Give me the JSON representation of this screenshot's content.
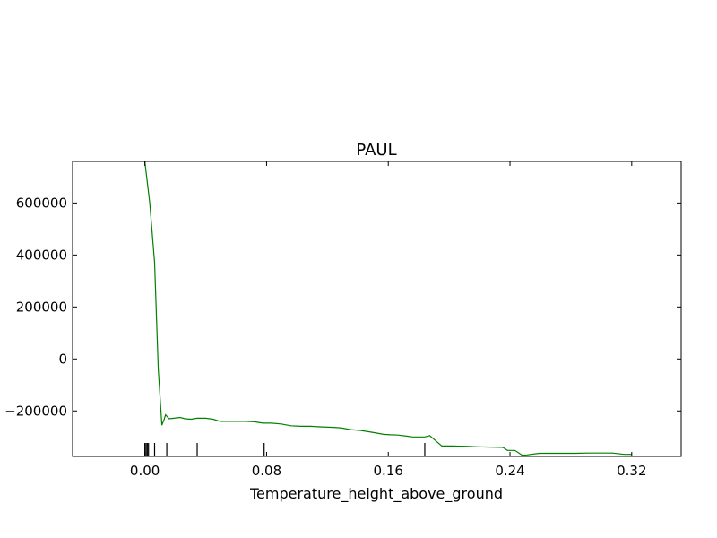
{
  "chart_data": {
    "type": "line",
    "title": "PAUL",
    "xlabel": "Temperature_height_above_ground",
    "ylabel": "",
    "xlim": [
      -0.0475,
      0.3525
    ],
    "ylim": [
      -375000,
      760000
    ],
    "xticks": [
      0.0,
      0.08,
      0.16,
      0.24,
      0.32
    ],
    "xtick_labels": [
      "0.00",
      "0.08",
      "0.16",
      "0.24",
      "0.32"
    ],
    "yticks": [
      -200000,
      0,
      200000,
      400000,
      600000
    ],
    "ytick_labels": [
      "−200000",
      "0",
      "200000",
      "400000",
      "600000"
    ],
    "grid": false,
    "series": [
      {
        "color": "#008000",
        "x": [
          0.0,
          0.0032,
          0.0064,
          0.0088,
          0.0112,
          0.0128,
          0.0136,
          0.016,
          0.0192,
          0.0232,
          0.0264,
          0.0304,
          0.0344,
          0.04,
          0.0448,
          0.0496,
          0.0552,
          0.0608,
          0.0664,
          0.072,
          0.0776,
          0.0832,
          0.0896,
          0.096,
          0.1024,
          0.1088,
          0.1152,
          0.1224,
          0.1288,
          0.1352,
          0.1416,
          0.1472,
          0.152,
          0.1568,
          0.1616,
          0.1664,
          0.172,
          0.176,
          0.1808,
          0.184,
          0.1872,
          0.1952,
          0.2032,
          0.2112,
          0.2192,
          0.2272,
          0.2352,
          0.2384,
          0.2432,
          0.248,
          0.2512,
          0.2592,
          0.2672,
          0.2752,
          0.2832,
          0.2912,
          0.2992,
          0.3072,
          0.3152,
          0.32
        ],
        "y": [
          760000,
          600000,
          370000,
          -40000,
          -255000,
          -230000,
          -215000,
          -230000,
          -228000,
          -225000,
          -230000,
          -232000,
          -228000,
          -228000,
          -232000,
          -240000,
          -240000,
          -240000,
          -240000,
          -242000,
          -247000,
          -247000,
          -250000,
          -257000,
          -259000,
          -259000,
          -261000,
          -263000,
          -265000,
          -272000,
          -275000,
          -280000,
          -285000,
          -290000,
          -292000,
          -293000,
          -297000,
          -300000,
          -300000,
          -300000,
          -295000,
          -335000,
          -335000,
          -336000,
          -338000,
          -339000,
          -340000,
          -352000,
          -352000,
          -370000,
          -369000,
          -363000,
          -363000,
          -363000,
          -363000,
          -362000,
          -362000,
          -362000,
          -367000,
          -367000
        ]
      }
    ],
    "rug": [
      0.0,
      0.0008,
      0.0016,
      0.0024,
      0.0064,
      0.0144,
      0.0344,
      0.0784,
      0.184
    ]
  }
}
